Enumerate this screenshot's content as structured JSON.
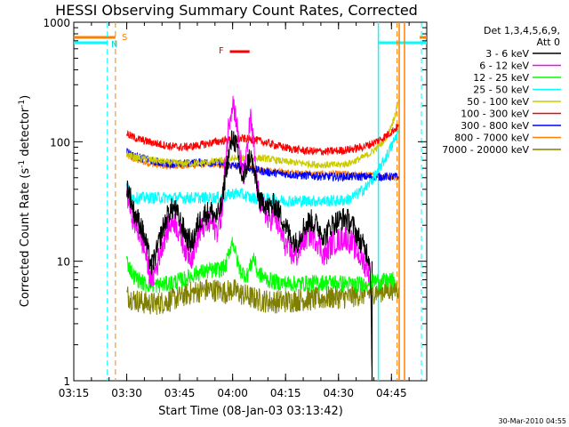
{
  "chart_data": {
    "type": "line",
    "title": "HESSI Observing Summary Count Rates, Corrected",
    "xlabel": "Start Time (08-Jan-03 03:13:42)",
    "ylabel_main": "Corrected Count Rate (s",
    "ylabel_sup1": "-1",
    "ylabel_mid": " detector",
    "ylabel_sup2": "-1",
    "ylabel_end": ")",
    "footer": "30-Mar-2010 04:55",
    "x_range_min": [
      195,
      295
    ],
    "y_scale": "log",
    "y_range": [
      1,
      1000
    ],
    "x_ticks": [
      {
        "label": "03:15",
        "min": 195
      },
      {
        "label": "03:30",
        "min": 210
      },
      {
        "label": "03:45",
        "min": 225
      },
      {
        "label": "04:00",
        "min": 240
      },
      {
        "label": "04:15",
        "min": 255
      },
      {
        "label": "04:30",
        "min": 270
      },
      {
        "label": "04:45",
        "min": 285
      }
    ],
    "y_ticks": [
      {
        "label": "1",
        "value": 1
      },
      {
        "label": "10",
        "value": 10
      },
      {
        "label": "100",
        "value": 100
      },
      {
        "label": "1000",
        "value": 1000
      }
    ],
    "legend": {
      "header1": "Det 1,3,4,5,6,9,",
      "header2": "Att 0",
      "placement": "right"
    },
    "markers": {
      "S_label": "S",
      "N_label": "N",
      "F_label": "F"
    },
    "flags": {
      "saa_orange": [
        [
          195,
          206.8
        ],
        [
          293,
          295
        ]
      ],
      "night_cyan": [
        [
          195,
          204.5
        ],
        [
          281.3,
          295
        ]
      ],
      "flare_red_bar": [
        239.2,
        244.8
      ],
      "dashed_cyan_lines": [
        204.5,
        293.5
      ],
      "dashed_orange_lines": [
        206.8,
        286.6
      ],
      "solid_cyan_lines": [
        281.3
      ],
      "solid_orange_lines": [
        287.2,
        288.7
      ],
      "black_drop_line": [
        279.5
      ]
    },
    "series": [
      {
        "name": "3 - 6 keV",
        "color": "#000000",
        "points": [
          [
            210,
            44
          ],
          [
            211,
            35
          ],
          [
            212,
            26
          ],
          [
            214,
            20
          ],
          [
            215.5,
            14
          ],
          [
            217,
            9
          ],
          [
            218.5,
            12
          ],
          [
            220,
            18
          ],
          [
            222,
            26
          ],
          [
            223.5,
            28
          ],
          [
            225,
            22
          ],
          [
            227,
            16
          ],
          [
            228.5,
            14
          ],
          [
            230,
            20
          ],
          [
            232,
            25
          ],
          [
            234,
            26
          ],
          [
            235.5,
            23
          ],
          [
            237,
            30
          ],
          [
            238,
            55
          ],
          [
            239,
            80
          ],
          [
            240,
            110
          ],
          [
            241,
            95
          ],
          [
            242,
            60
          ],
          [
            243,
            48
          ],
          [
            244,
            62
          ],
          [
            245,
            78
          ],
          [
            246,
            58
          ],
          [
            247,
            40
          ],
          [
            248,
            30
          ],
          [
            249,
            32
          ],
          [
            250,
            28
          ],
          [
            252,
            30
          ],
          [
            254,
            23
          ],
          [
            256,
            17
          ],
          [
            258,
            14
          ],
          [
            260,
            19
          ],
          [
            262,
            22
          ],
          [
            264,
            20
          ],
          [
            266,
            16
          ],
          [
            268,
            20
          ],
          [
            270,
            22
          ],
          [
            272,
            23
          ],
          [
            274,
            20
          ],
          [
            276,
            15
          ],
          [
            278,
            12
          ],
          [
            279,
            10
          ],
          [
            279.5,
            1.2
          ]
        ]
      },
      {
        "name": "6 - 12 keV",
        "color": "#ff00ff",
        "points": [
          [
            210,
            38
          ],
          [
            211,
            28
          ],
          [
            212,
            22
          ],
          [
            214,
            16
          ],
          [
            215.5,
            11
          ],
          [
            217,
            7
          ],
          [
            218.5,
            9
          ],
          [
            220,
            14
          ],
          [
            222,
            20
          ],
          [
            223.5,
            22
          ],
          [
            225,
            17
          ],
          [
            227,
            12
          ],
          [
            228.5,
            11
          ],
          [
            230,
            16
          ],
          [
            232,
            20
          ],
          [
            234,
            21
          ],
          [
            235.5,
            18
          ],
          [
            237,
            26
          ],
          [
            238,
            70
          ],
          [
            239,
            150
          ],
          [
            240,
            220
          ],
          [
            241,
            160
          ],
          [
            242,
            80
          ],
          [
            243,
            48
          ],
          [
            244,
            75
          ],
          [
            245,
            160
          ],
          [
            246,
            90
          ],
          [
            247,
            40
          ],
          [
            248,
            30
          ],
          [
            249,
            28
          ],
          [
            250,
            22
          ],
          [
            252,
            24
          ],
          [
            254,
            16
          ],
          [
            256,
            12
          ],
          [
            258,
            11
          ],
          [
            260,
            15
          ],
          [
            262,
            17
          ],
          [
            264,
            15
          ],
          [
            266,
            11
          ],
          [
            268,
            14
          ],
          [
            270,
            15
          ],
          [
            272,
            16
          ],
          [
            274,
            14
          ],
          [
            276,
            11
          ],
          [
            278,
            9
          ],
          [
            279,
            8
          ]
        ]
      },
      {
        "name": "12 - 25 keV",
        "color": "#00ff00",
        "points": [
          [
            210,
            10
          ],
          [
            212,
            7.5
          ],
          [
            215,
            6.5
          ],
          [
            218,
            6.3
          ],
          [
            221,
            6.4
          ],
          [
            224,
            6.8
          ],
          [
            227,
            7.2
          ],
          [
            230,
            8
          ],
          [
            233,
            8.3
          ],
          [
            236,
            8.5
          ],
          [
            238,
            9
          ],
          [
            239,
            12
          ],
          [
            240,
            15
          ],
          [
            241,
            11
          ],
          [
            242,
            8.5
          ],
          [
            244,
            7.5
          ],
          [
            245,
            9
          ],
          [
            246,
            11
          ],
          [
            247,
            8
          ],
          [
            250,
            7
          ],
          [
            253,
            6.6
          ],
          [
            256,
            6.5
          ],
          [
            260,
            6.5
          ],
          [
            264,
            6.6
          ],
          [
            268,
            6.7
          ],
          [
            272,
            6.5
          ],
          [
            276,
            6.4
          ],
          [
            280,
            6.8
          ],
          [
            283,
            6.8
          ],
          [
            286,
            7
          ]
        ]
      },
      {
        "name": "25 - 50 keV",
        "color": "#00ffff",
        "points": [
          [
            210,
            42
          ],
          [
            211,
            38
          ],
          [
            212,
            34
          ],
          [
            215,
            34
          ],
          [
            220,
            34
          ],
          [
            225,
            34
          ],
          [
            230,
            34
          ],
          [
            235,
            34
          ],
          [
            238,
            35
          ],
          [
            240,
            37
          ],
          [
            242,
            37
          ],
          [
            245,
            34
          ],
          [
            250,
            33
          ],
          [
            255,
            32
          ],
          [
            260,
            32
          ],
          [
            265,
            32
          ],
          [
            270,
            32
          ],
          [
            273,
            33
          ],
          [
            275,
            36
          ],
          [
            278,
            42
          ],
          [
            281,
            55
          ],
          [
            284,
            80
          ],
          [
            286,
            105
          ],
          [
            287,
            125
          ]
        ]
      },
      {
        "name": "50 - 100 keV",
        "color": "#cccc00",
        "points": [
          [
            210,
            80
          ],
          [
            212,
            74
          ],
          [
            215,
            72
          ],
          [
            220,
            68
          ],
          [
            225,
            66
          ],
          [
            230,
            66
          ],
          [
            235,
            68
          ],
          [
            240,
            72
          ],
          [
            245,
            74
          ],
          [
            250,
            72
          ],
          [
            255,
            68
          ],
          [
            260,
            66
          ],
          [
            265,
            64
          ],
          [
            270,
            64
          ],
          [
            273,
            66
          ],
          [
            276,
            72
          ],
          [
            279,
            80
          ],
          [
            282,
            95
          ],
          [
            284,
            115
          ],
          [
            285.5,
            150
          ],
          [
            286.5,
            190
          ],
          [
            287,
            225
          ]
        ]
      },
      {
        "name": "100 - 300 keV",
        "color": "#ff0000",
        "points": [
          [
            210,
            118
          ],
          [
            211,
            112
          ],
          [
            213,
            106
          ],
          [
            216,
            100
          ],
          [
            219,
            96
          ],
          [
            222,
            92
          ],
          [
            225,
            90
          ],
          [
            228,
            91
          ],
          [
            231,
            94
          ],
          [
            234,
            98
          ],
          [
            237,
            102
          ],
          [
            240,
            104
          ],
          [
            243,
            106
          ],
          [
            246,
            104
          ],
          [
            249,
            99
          ],
          [
            252,
            94
          ],
          [
            255,
            89
          ],
          [
            258,
            86
          ],
          [
            261,
            84
          ],
          [
            264,
            83
          ],
          [
            267,
            83
          ],
          [
            270,
            84
          ],
          [
            273,
            86
          ],
          [
            276,
            89
          ],
          [
            279,
            95
          ],
          [
            282,
            105
          ],
          [
            284.5,
            118
          ],
          [
            287,
            135
          ]
        ]
      },
      {
        "name": "300 - 800 keV",
        "color": "#0000ff",
        "points": [
          [
            210,
            84
          ],
          [
            212,
            76
          ],
          [
            215,
            72
          ],
          [
            218,
            68
          ],
          [
            221,
            66
          ],
          [
            224,
            65
          ],
          [
            227,
            66
          ],
          [
            230,
            67
          ],
          [
            233,
            67
          ],
          [
            236,
            66
          ],
          [
            239,
            64
          ],
          [
            242,
            62
          ],
          [
            245,
            60
          ],
          [
            248,
            57
          ],
          [
            251,
            55
          ],
          [
            254,
            54
          ],
          [
            257,
            53
          ],
          [
            260,
            52
          ],
          [
            263,
            52
          ],
          [
            266,
            51
          ],
          [
            269,
            51
          ],
          [
            272,
            51
          ],
          [
            275,
            51
          ],
          [
            278,
            51
          ],
          [
            281,
            51
          ],
          [
            284,
            51
          ],
          [
            287,
            51
          ]
        ]
      },
      {
        "name": "800 - 7000 keV",
        "color": "#ff8000",
        "points": [
          [
            210,
            76
          ],
          [
            212,
            71
          ],
          [
            215,
            67
          ],
          [
            218,
            64
          ],
          [
            221,
            62
          ],
          [
            224,
            62
          ],
          [
            227,
            63
          ],
          [
            230,
            64
          ],
          [
            233,
            64
          ],
          [
            236,
            64
          ],
          [
            239,
            63
          ],
          [
            242,
            62
          ],
          [
            245,
            61
          ],
          [
            248,
            59
          ],
          [
            251,
            57
          ],
          [
            254,
            56
          ],
          [
            257,
            55
          ],
          [
            260,
            55
          ],
          [
            263,
            54
          ],
          [
            266,
            54
          ],
          [
            269,
            54
          ],
          [
            272,
            54
          ],
          [
            275,
            53
          ],
          [
            278,
            53
          ],
          [
            281,
            52
          ],
          [
            284,
            51
          ],
          [
            286,
            50
          ],
          [
            287,
            49
          ]
        ]
      },
      {
        "name": "7000 - 20000 keV",
        "color": "#808000",
        "points": [
          [
            210,
            5.2
          ],
          [
            212,
            4.8
          ],
          [
            215,
            4.5
          ],
          [
            218,
            4.4
          ],
          [
            221,
            4.6
          ],
          [
            224,
            4.9
          ],
          [
            227,
            5.3
          ],
          [
            230,
            5.6
          ],
          [
            233,
            5.8
          ],
          [
            236,
            5.7
          ],
          [
            238,
            5.5
          ],
          [
            240,
            5.8
          ],
          [
            242,
            5.4
          ],
          [
            245,
            5
          ],
          [
            248,
            4.7
          ],
          [
            251,
            4.6
          ],
          [
            254,
            4.6
          ],
          [
            257,
            4.7
          ],
          [
            260,
            4.8
          ],
          [
            263,
            4.8
          ],
          [
            266,
            4.9
          ],
          [
            269,
            5
          ],
          [
            272,
            5
          ],
          [
            275,
            5.2
          ],
          [
            278,
            5.4
          ],
          [
            281,
            5.6
          ],
          [
            284,
            5.8
          ],
          [
            287,
            6
          ]
        ]
      }
    ]
  }
}
